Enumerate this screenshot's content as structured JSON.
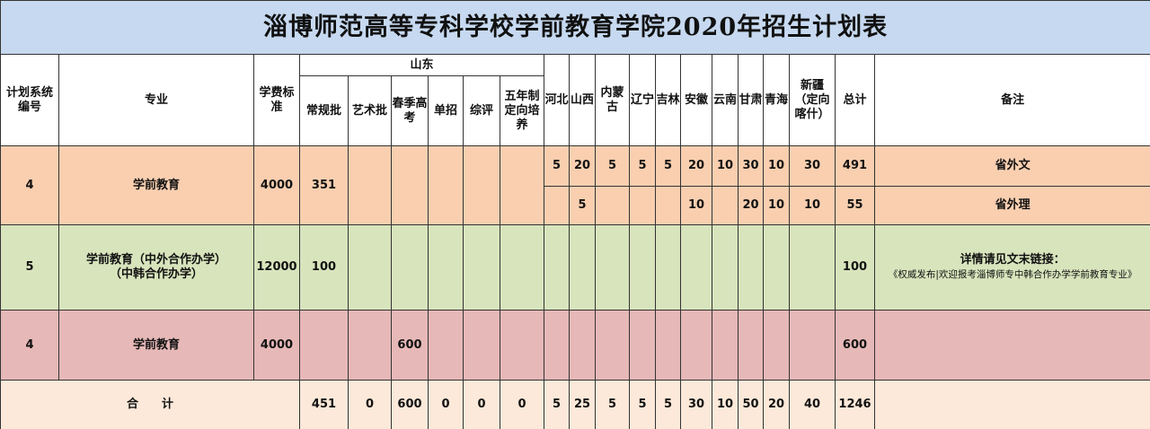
{
  "title": "淄博师范高等专科学校学前教育学院2020年招生计划表",
  "header": {
    "code": "计划系统编号",
    "major": "专业",
    "fee": "学费标准",
    "shandong": "山东",
    "shandong_cols": [
      "常规批",
      "艺术批",
      "春季高考",
      "单招",
      "综评",
      "五年制定向培养"
    ],
    "provinces": [
      "河北",
      "山西",
      "内蒙古",
      "辽宁",
      "吉林",
      "安徽",
      "云南",
      "甘肃",
      "青海",
      "新疆（定向喀什）"
    ],
    "total": "总计",
    "note": "备注"
  },
  "rows": [
    {
      "code": 4,
      "major": [
        "学前教育"
      ],
      "fee": 4000,
      "shandong": [
        351,
        null,
        null,
        null,
        null,
        null
      ],
      "lines": [
        {
          "provinces": [
            5,
            20,
            5,
            5,
            5,
            20,
            10,
            30,
            10,
            30
          ],
          "total": 491,
          "note": [
            "省外文"
          ]
        },
        {
          "provinces": [
            null,
            5,
            null,
            null,
            null,
            10,
            null,
            20,
            10,
            10
          ],
          "total": 55,
          "note": [
            "省外理"
          ]
        }
      ]
    },
    {
      "code": 5,
      "major": [
        "学前教育（中外合作办学）",
        "（中韩合作办学）"
      ],
      "fee": 12000,
      "shandong": [
        100,
        null,
        null,
        null,
        null,
        null
      ],
      "lines": [
        {
          "provinces": [
            null,
            null,
            null,
            null,
            null,
            null,
            null,
            null,
            null,
            null
          ],
          "total": 100,
          "note": [
            "详情请见文末链接：",
            "《权威发布|欢迎报考淄博师专中韩合作办学学前教育专业》"
          ]
        }
      ]
    },
    {
      "code": 4,
      "major": [
        "学前教育"
      ],
      "fee": 4000,
      "shandong": [
        null,
        null,
        600,
        null,
        null,
        null
      ],
      "lines": [
        {
          "provinces": [
            null,
            null,
            null,
            null,
            null,
            null,
            null,
            null,
            null,
            null
          ],
          "total": 600,
          "note": []
        }
      ]
    }
  ],
  "sum": {
    "label": "合　　计",
    "shandong": [
      451,
      0,
      600,
      0,
      0,
      0
    ],
    "provinces": [
      5,
      25,
      5,
      5,
      5,
      30,
      10,
      50,
      20,
      40
    ],
    "total": 1246
  }
}
